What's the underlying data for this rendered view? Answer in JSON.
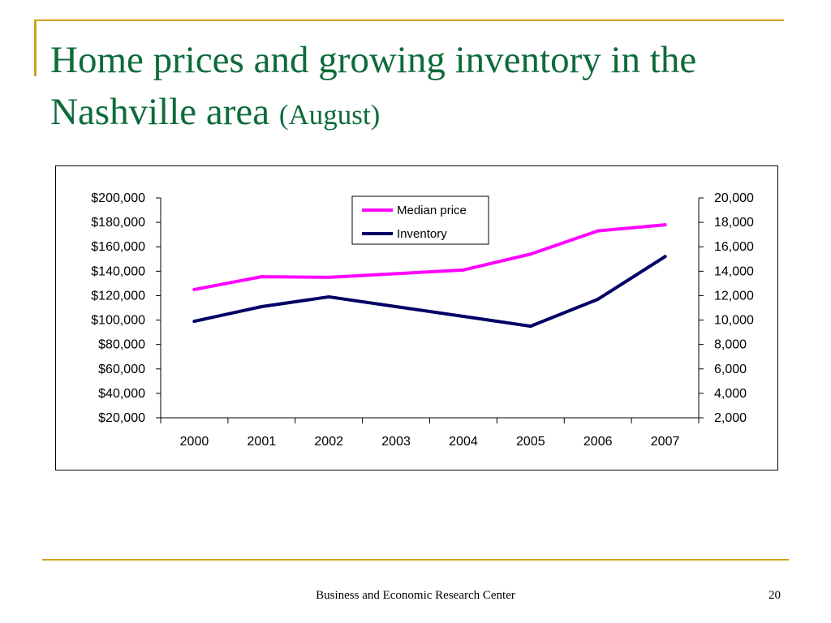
{
  "slide": {
    "title_main": "Home prices and growing inventory in the Nashville area",
    "title_sub": "(August)",
    "footer": "Business and Economic Research Center",
    "page_number": "20",
    "accent_color": "#d4a020",
    "title_color": "#0e6b3a"
  },
  "chart_data": {
    "type": "line",
    "categories": [
      "2000",
      "2001",
      "2002",
      "2003",
      "2004",
      "2005",
      "2006",
      "2007"
    ],
    "series": [
      {
        "name": "Median price",
        "axis": "left",
        "color": "#ff00ff",
        "values": [
          125000,
          135500,
          135000,
          138000,
          141000,
          154000,
          173000,
          178000
        ]
      },
      {
        "name": "Inventory",
        "axis": "right",
        "color": "#000066",
        "values": [
          9900,
          11100,
          11900,
          11100,
          10300,
          9500,
          11700,
          15200
        ]
      }
    ],
    "y_left": {
      "min": 20000,
      "max": 200000,
      "ticks": [
        20000,
        40000,
        60000,
        80000,
        100000,
        120000,
        140000,
        160000,
        180000,
        200000
      ],
      "tick_labels": [
        "$20,000",
        "$40,000",
        "$60,000",
        "$80,000",
        "$100,000",
        "$120,000",
        "$140,000",
        "$160,000",
        "$180,000",
        "$200,000"
      ]
    },
    "y_right": {
      "min": 2000,
      "max": 20000,
      "ticks": [
        2000,
        4000,
        6000,
        8000,
        10000,
        12000,
        14000,
        16000,
        18000,
        20000
      ],
      "tick_labels": [
        "2,000",
        "4,000",
        "6,000",
        "8,000",
        "10,000",
        "12,000",
        "14,000",
        "16,000",
        "18,000",
        "20,000"
      ]
    },
    "grid": false,
    "legend_position": "top-center"
  }
}
